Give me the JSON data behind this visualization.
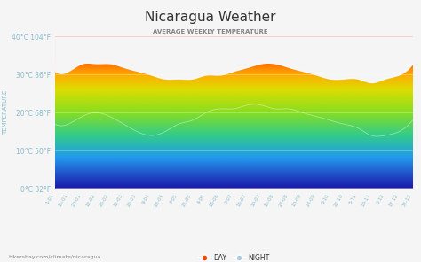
{
  "title": "Nicaragua Weather",
  "subtitle": "AVERAGE WEEKLY TEMPERATURE",
  "ylabel": "TEMPERATURE",
  "watermark": "hikersbay.com/climate/nicaragua",
  "ylim": [
    0,
    40
  ],
  "yticks": [
    0,
    10,
    20,
    30,
    40
  ],
  "ytick_labels": [
    "0°C 32°F",
    "10°C 50°F",
    "20°C 68°F",
    "30°C 86°F",
    "40°C 104°F"
  ],
  "xtick_labels": [
    "1-01",
    "15-01",
    "29-01",
    "12-02",
    "26-02",
    "12-03",
    "26-03",
    "9-04",
    "23-04",
    "7-05",
    "21-05",
    "4-06",
    "18-06",
    "2-07",
    "16-07",
    "30-07",
    "13-08",
    "27-08",
    "10-09",
    "24-09",
    "8-10",
    "22-10",
    "5-11",
    "19-11",
    "3-12",
    "17-12",
    "31-12"
  ],
  "background_color": "#f5f5f5",
  "title_color": "#333333",
  "subtitle_color": "#555555",
  "axis_label_color": "#88bbcc",
  "tick_color": "#88bbcc",
  "legend_day_color": "#ff4400",
  "legend_night_color": "#aaccdd",
  "day_values": [
    31,
    31,
    33,
    33,
    33,
    32,
    31,
    30,
    29,
    29,
    29,
    30,
    30,
    31,
    32,
    33,
    33,
    32,
    31,
    30,
    29,
    29,
    29,
    28,
    29,
    30,
    33
  ],
  "night_values": [
    17,
    17,
    19,
    20,
    19,
    17,
    15,
    14,
    15,
    17,
    18,
    20,
    21,
    21,
    22,
    22,
    21,
    21,
    20,
    19,
    18,
    17,
    16,
    14,
    14,
    15,
    18
  ]
}
